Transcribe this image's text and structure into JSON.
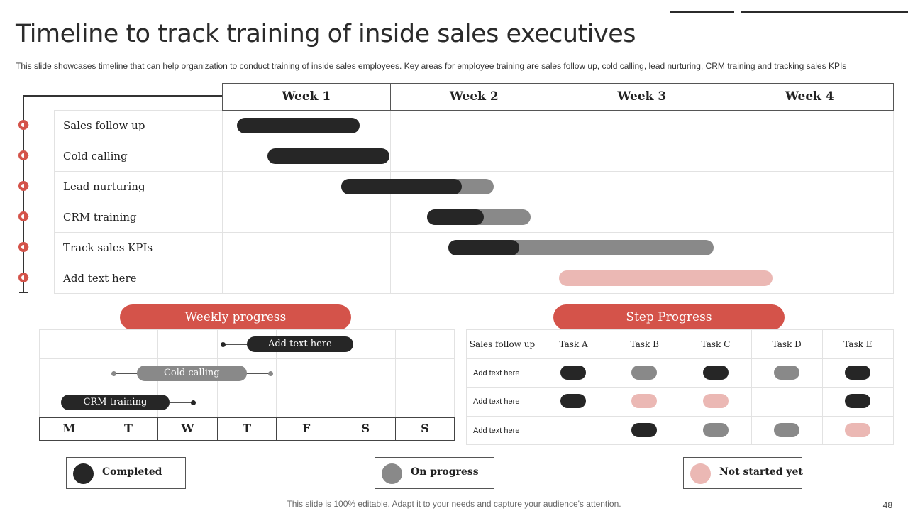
{
  "title": "Timeline to track training of inside sales executives",
  "subtitle": "This slide showcases timeline that can help organization to conduct training of inside sales employees. Key areas for employee training are sales follow up, cold calling, lead nurturing, CRM training and tracking sales KPIs",
  "colors": {
    "completed": "#262626",
    "in_progress": "#898989",
    "not_started": "#ebb8b4",
    "accent": "#d4534a"
  },
  "gantt": {
    "weeks": [
      "Week 1",
      "Week 2",
      "Week 3",
      "Week 4"
    ],
    "tasks": [
      {
        "label": "Sales follow up",
        "start": 0.09,
        "done": 0.82,
        "end": 0.82,
        "status": "completed"
      },
      {
        "label": "Cold calling",
        "start": 0.27,
        "done": 1.0,
        "end": 1.0,
        "status": "completed"
      },
      {
        "label": "Lead nurturing",
        "start": 0.71,
        "done": 1.43,
        "end": 1.62,
        "status": "in_progress"
      },
      {
        "label": "CRM training",
        "start": 1.22,
        "done": 1.56,
        "end": 1.84,
        "status": "in_progress"
      },
      {
        "label": "Track sales KPIs",
        "start": 1.35,
        "done": 1.77,
        "end": 2.93,
        "status": "in_progress"
      },
      {
        "label": "Add text here",
        "start": 2.01,
        "done": 2.01,
        "end": 3.28,
        "status": "not_started"
      }
    ]
  },
  "weekly_progress": {
    "title": "Weekly progress",
    "days": [
      "M",
      "T",
      "W",
      "T",
      "F",
      "S",
      "S"
    ],
    "bars": [
      {
        "label": "Add text here",
        "status": "completed",
        "pill_start": 3.5,
        "pill_end": 5.3,
        "line_start": 3.1,
        "line_end": 3.5,
        "dot": "left"
      },
      {
        "label": "Cold calling",
        "status": "in_progress",
        "pill_start": 1.65,
        "pill_end": 3.5,
        "line_start": 1.25,
        "line_end": 3.9,
        "dot": "both"
      },
      {
        "label": "CRM training",
        "status": "completed",
        "pill_start": 0.37,
        "pill_end": 2.2,
        "line_start": 2.2,
        "line_end": 2.6,
        "dot": "right"
      }
    ]
  },
  "step_progress": {
    "title": "Step Progress",
    "header": "Sales follow up",
    "tasks": [
      "Task A",
      "Task B",
      "Task C",
      "Task D",
      "Task E"
    ],
    "rows": [
      {
        "label": "Add text here",
        "cells": [
          "completed",
          "in_progress",
          "completed",
          "in_progress",
          "completed"
        ]
      },
      {
        "label": "Add text here",
        "cells": [
          "completed",
          "not_started",
          "not_started",
          "",
          "completed"
        ]
      },
      {
        "label": "Add text here",
        "cells": [
          "",
          "completed",
          "in_progress",
          "in_progress",
          "not_started"
        ]
      }
    ]
  },
  "legend": [
    {
      "label": "Completed",
      "status": "completed"
    },
    {
      "label": "On progress",
      "status": "in_progress"
    },
    {
      "label": "Not started yet",
      "status": "not_started"
    }
  ],
  "footer": "This slide is 100% editable. Adapt it to your needs and capture your audience's attention.",
  "page_number": "48"
}
